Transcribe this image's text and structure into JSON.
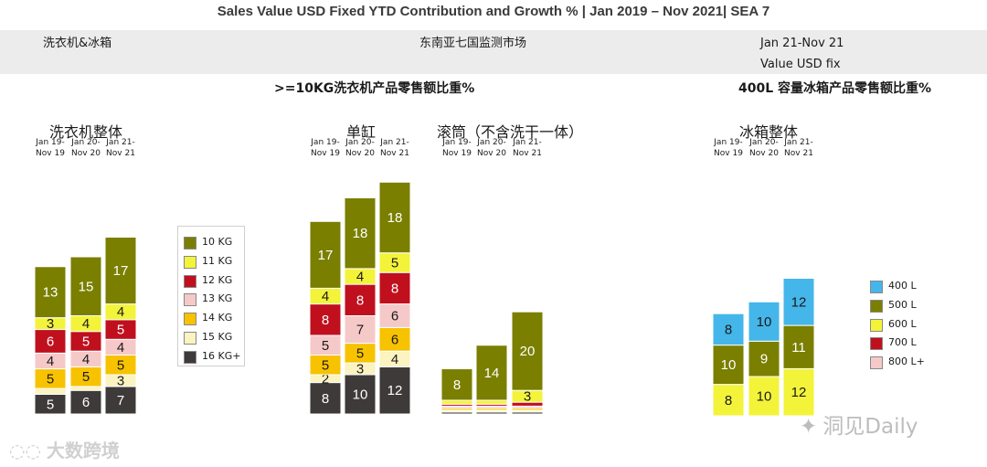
{
  "header": {
    "title": "Sales Value USD Fixed YTD Contribution and Growth % | Jan 2019 – Nov 2021| SEA 7",
    "category": "洗衣机&冰箱",
    "market": "东南亚七国监测市场",
    "period": "Jan 21-Nov 21",
    "measure": "Value USD fix"
  },
  "sections": {
    "washer_heading": ">=10KG洗衣机产品零售额比重%",
    "fridge_heading": "400L 容量冰箱产品零售额比重%"
  },
  "periods": [
    "Jan 19-\nNov 19",
    "Jan 20-\nNov 20",
    "Jan 21-\nNov 21"
  ],
  "legend_washer": [
    {
      "label": "10 KG",
      "color": "#7a7f00"
    },
    {
      "label": "11 KG",
      "color": "#f3f33a"
    },
    {
      "label": "12 KG",
      "color": "#c0101e"
    },
    {
      "label": "13 KG",
      "color": "#f6c9c9"
    },
    {
      "label": "14 KG",
      "color": "#f7c200"
    },
    {
      "label": "15 KG",
      "color": "#fbf3c0"
    },
    {
      "label": "16 KG+",
      "color": "#3e3a39"
    }
  ],
  "legend_fridge": [
    {
      "label": "400 L",
      "color": "#45b6e9"
    },
    {
      "label": "500 L",
      "color": "#7a7f00"
    },
    {
      "label": "600 L",
      "color": "#f3f33a"
    },
    {
      "label": "700 L",
      "color": "#c0101e"
    },
    {
      "label": "800 L+",
      "color": "#f6c9c9"
    }
  ],
  "chart_data": [
    {
      "type": "bar",
      "stacked": true,
      "title": "洗衣机整体",
      "categories": [
        "Jan 19-Nov 19",
        "Jan 20-Nov 20",
        "Jan 21-Nov 21"
      ],
      "series": [
        {
          "name": "16 KG+",
          "values": [
            5,
            6,
            7
          ],
          "labels": [
            "5",
            "6",
            "7"
          ]
        },
        {
          "name": "15 KG",
          "values": [
            1.5,
            1,
            3
          ],
          "labels": [
            "",
            "",
            "3"
          ]
        },
        {
          "name": "14 KG",
          "values": [
            5,
            5,
            5
          ],
          "labels": [
            "5",
            "5",
            "5"
          ]
        },
        {
          "name": "13 KG",
          "values": [
            4,
            4,
            4
          ],
          "labels": [
            "4",
            "4",
            "4"
          ]
        },
        {
          "name": "12 KG",
          "values": [
            6,
            5,
            5
          ],
          "labels": [
            "6",
            "5",
            "5"
          ]
        },
        {
          "name": "11 KG",
          "values": [
            3,
            4,
            4
          ],
          "labels": [
            "3",
            "4",
            "4"
          ]
        },
        {
          "name": "10 KG",
          "values": [
            13,
            15,
            17
          ],
          "labels": [
            "13",
            "15",
            "17"
          ]
        }
      ]
    },
    {
      "type": "bar",
      "stacked": true,
      "title": "单缸",
      "categories": [
        "Jan 19-Nov 19",
        "Jan 20-Nov 20",
        "Jan 21-Nov 21"
      ],
      "series": [
        {
          "name": "16 KG+",
          "values": [
            8,
            10,
            12
          ],
          "labels": [
            "8",
            "10",
            "12"
          ]
        },
        {
          "name": "15 KG",
          "values": [
            2,
            3,
            4
          ],
          "labels": [
            "2",
            "3",
            "4"
          ]
        },
        {
          "name": "14 KG",
          "values": [
            5,
            5,
            6
          ],
          "labels": [
            "5",
            "5",
            "6"
          ]
        },
        {
          "name": "13 KG",
          "values": [
            5,
            7,
            6
          ],
          "labels": [
            "5",
            "7",
            "6"
          ]
        },
        {
          "name": "12 KG",
          "values": [
            8,
            8,
            8
          ],
          "labels": [
            "8",
            "8",
            "8"
          ]
        },
        {
          "name": "11 KG",
          "values": [
            4,
            4,
            5
          ],
          "labels": [
            "4",
            "4",
            "5"
          ]
        },
        {
          "name": "10 KG",
          "values": [
            17,
            18,
            18
          ],
          "labels": [
            "17",
            "18",
            "18"
          ]
        }
      ]
    },
    {
      "type": "bar",
      "stacked": true,
      "title": "滚筒（不含洗干一体）",
      "categories": [
        "Jan 19-Nov 19",
        "Jan 20-Nov 20",
        "Jan 21-Nov 21"
      ],
      "series": [
        {
          "name": "16 KG+",
          "values": [
            0.5,
            0.5,
            0.5
          ],
          "labels": [
            "",
            "",
            ""
          ]
        },
        {
          "name": "15 KG",
          "values": [
            0.5,
            0.5,
            0.5
          ],
          "labels": [
            "",
            "",
            ""
          ]
        },
        {
          "name": "14 KG",
          "values": [
            0.5,
            0.5,
            0.5
          ],
          "labels": [
            "",
            "",
            ""
          ]
        },
        {
          "name": "13 KG",
          "values": [
            0.5,
            0.5,
            0.5
          ],
          "labels": [
            "",
            "",
            ""
          ]
        },
        {
          "name": "12 KG",
          "values": [
            0.5,
            0.5,
            1
          ],
          "labels": [
            "",
            "",
            ""
          ]
        },
        {
          "name": "11 KG",
          "values": [
            1,
            1,
            3
          ],
          "labels": [
            "",
            "",
            "3"
          ]
        },
        {
          "name": "10 KG",
          "values": [
            8,
            14,
            20
          ],
          "labels": [
            "8",
            "14",
            "20"
          ]
        }
      ]
    },
    {
      "type": "bar",
      "stacked": true,
      "title": "冰箱整体",
      "categories": [
        "Jan 19-Nov 19",
        "Jan 20-Nov 20",
        "Jan 21-Nov 21"
      ],
      "series": [
        {
          "name": "600 L",
          "values": [
            8,
            10,
            12
          ],
          "labels": [
            "8",
            "10",
            "12"
          ]
        },
        {
          "name": "500 L",
          "values": [
            10,
            9,
            11
          ],
          "labels": [
            "10",
            "9",
            "11"
          ]
        },
        {
          "name": "400 L",
          "values": [
            8,
            10,
            12
          ],
          "labels": [
            "8",
            "10",
            "12"
          ]
        }
      ]
    }
  ],
  "watermarks": {
    "left": "大数跨境",
    "right": "洞见Daily"
  }
}
